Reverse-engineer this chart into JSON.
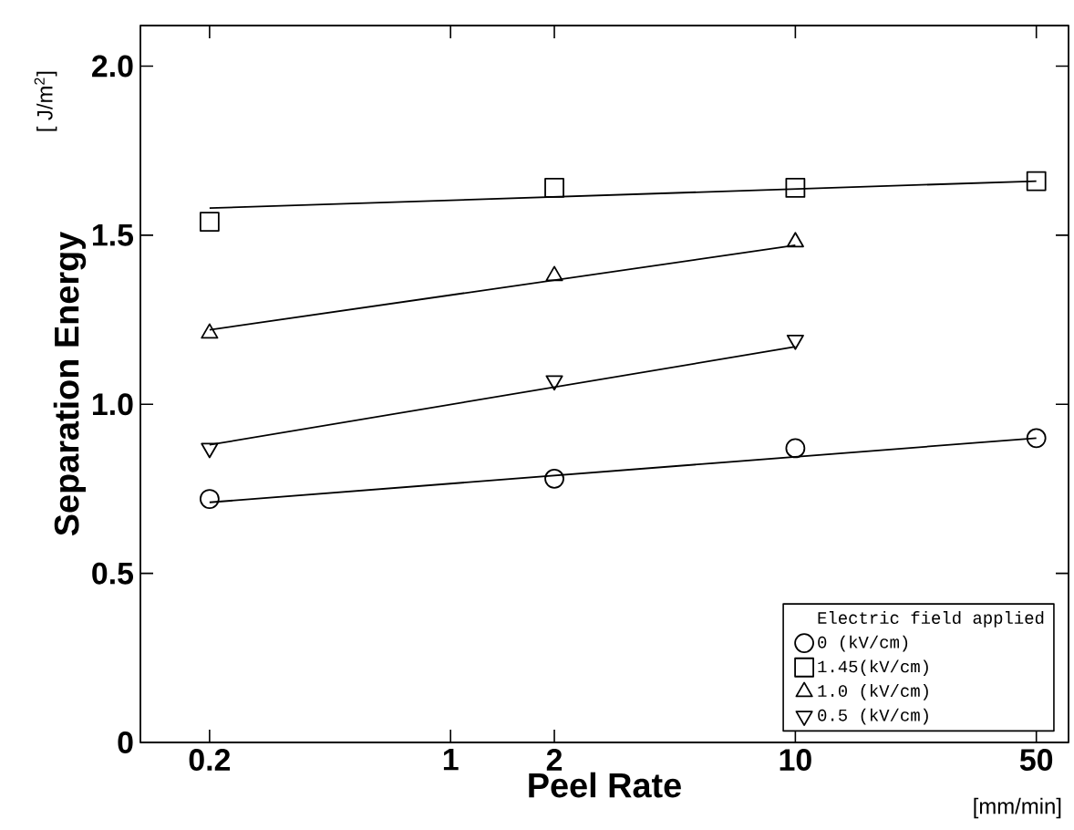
{
  "chart_data": {
    "type": "scatter",
    "xlabel": "Peel Rate",
    "ylabel": "Separation Energy",
    "legend_title": "Electric field applied",
    "legend": "bottom right",
    "log": "x",
    "annotations": [
      "[ J/m$^{2}$]",
      "[mm/min]"
    ],
    "xlim": [
      0.126,
      62
    ],
    "xticks": [
      0.2,
      1,
      2,
      10,
      50
    ],
    "ylim": [
      0,
      2.12
    ],
    "yticks": [
      0,
      0.5,
      {
        "value": 1,
        "label": "1.0"
      },
      {
        "value": 1.5,
        "label": "1.5"
      },
      {
        "value": 2,
        "label": "2.0"
      }
    ],
    "series": [
      {
        "name": "0 (kV/cm)",
        "marker": "circle",
        "color": "#000000",
        "x": [
          0.2,
          2,
          10,
          50
        ],
        "values": [
          0.72,
          0.78,
          0.87,
          0.9
        ]
      },
      {
        "name": "1.45(kV/cm)",
        "marker": "square",
        "color": "#000000",
        "x": [
          0.2,
          2,
          10,
          50
        ],
        "values": [
          1.54,
          1.64,
          1.64,
          1.66
        ]
      },
      {
        "name": "1.0 (kV/cm)",
        "marker": "triangle",
        "color": "#000000",
        "x": [
          0.2,
          2,
          10
        ],
        "values": [
          1.21,
          1.38,
          1.48
        ]
      },
      {
        "name": "0.5 (kV/cm)",
        "marker": "triangle-down",
        "color": "#000000",
        "x": [
          0.2,
          2,
          10
        ],
        "values": [
          0.87,
          1.07,
          1.19
        ]
      },
      {
        "type": "line",
        "marker": "none",
        "color": "#000000",
        "x": [
          0.2,
          50
        ],
        "values": [
          0.71,
          0.9
        ]
      },
      {
        "type": "line",
        "marker": "none",
        "color": "#000000",
        "x": [
          0.2,
          50
        ],
        "values": [
          1.58,
          1.66
        ]
      },
      {
        "type": "line",
        "marker": "none",
        "color": "#000000",
        "x": [
          0.2,
          10
        ],
        "values": [
          1.22,
          1.47
        ]
      },
      {
        "type": "line",
        "marker": "none",
        "color": "#000000",
        "x": [
          0.2,
          10
        ],
        "values": [
          0.88,
          1.17
        ]
      }
    ]
  }
}
